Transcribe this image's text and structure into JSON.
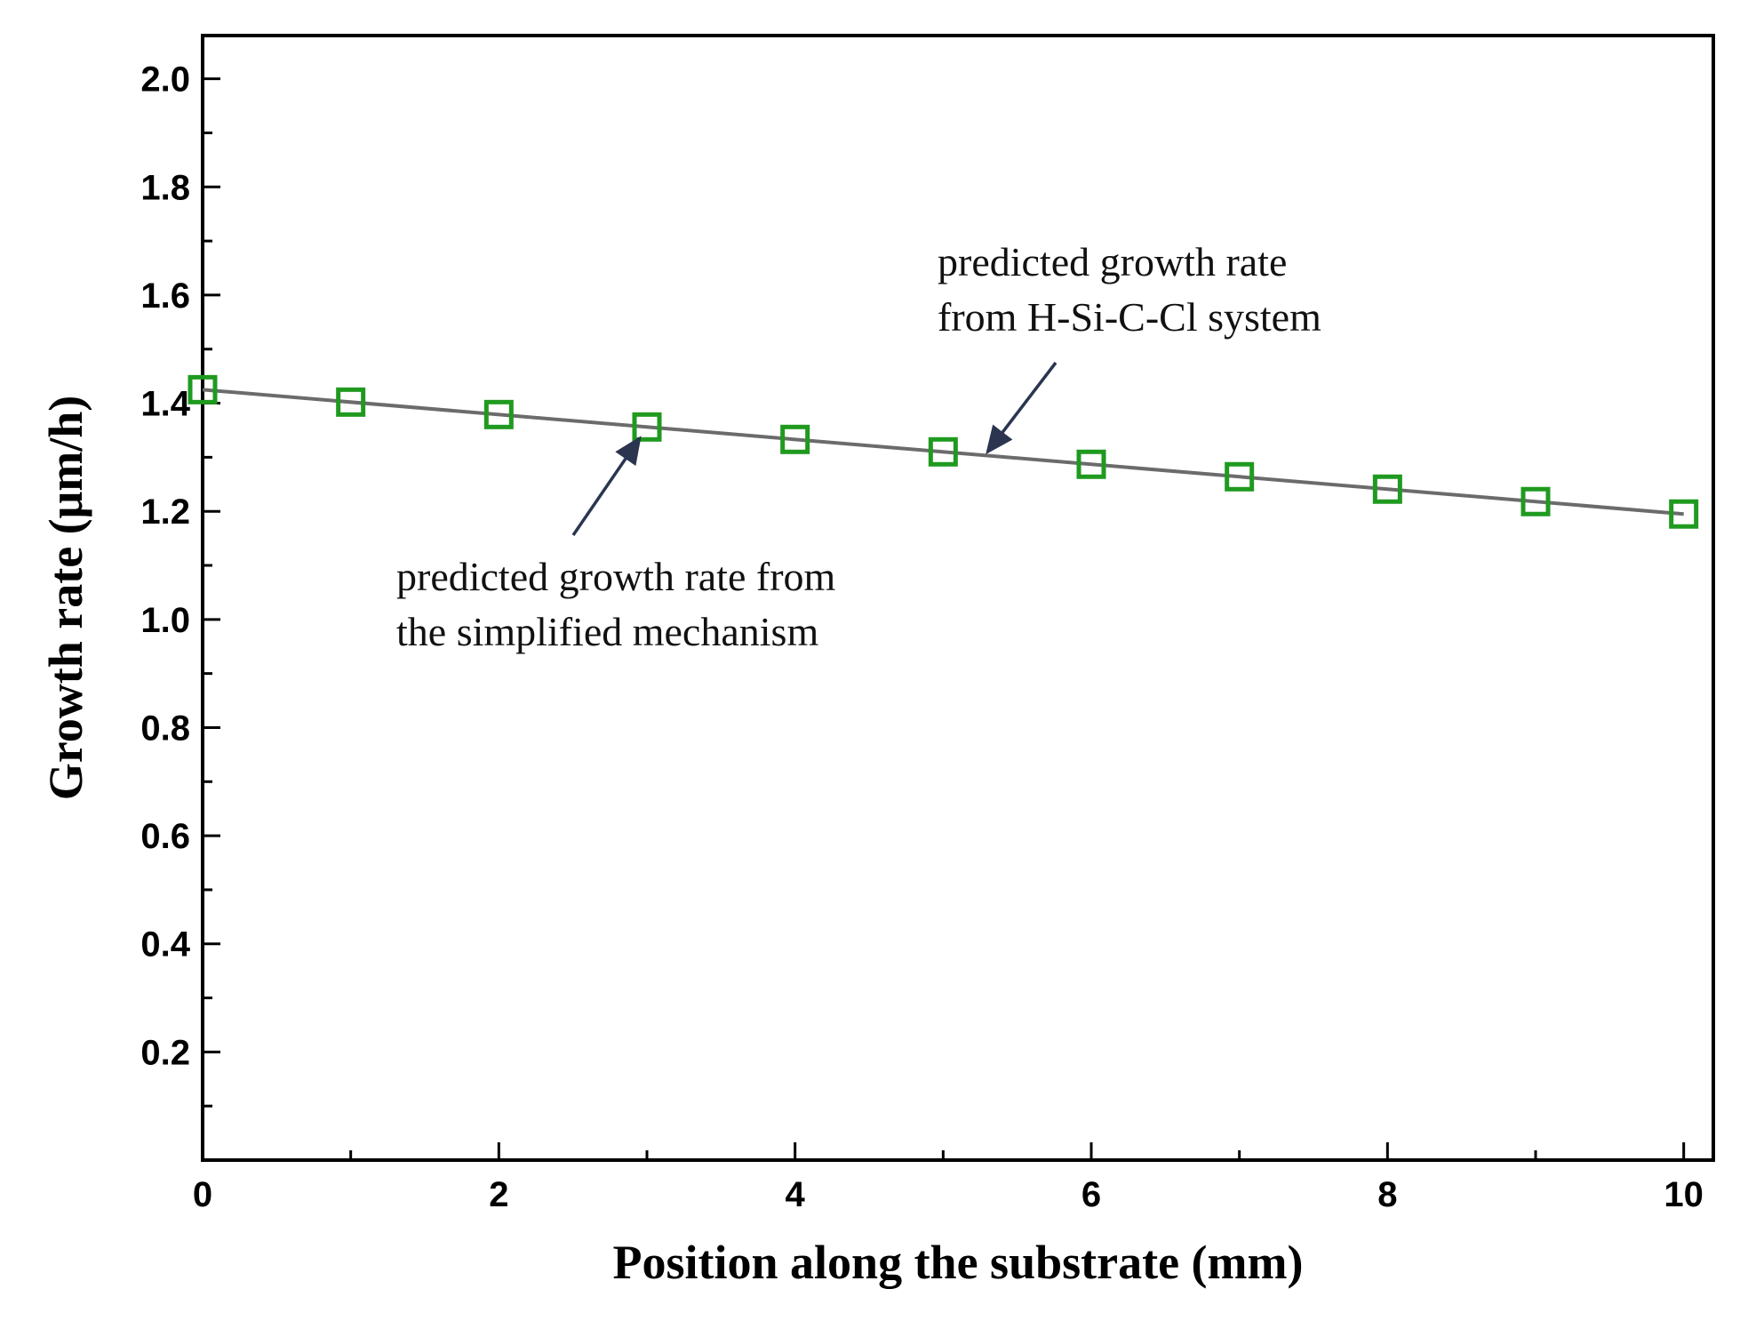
{
  "chart_data": {
    "type": "line",
    "xlabel": "Position along the substrate (mm)",
    "ylabel": "Growth rate (μm/h)",
    "xlim": [
      0,
      10.2
    ],
    "ylim": [
      0,
      2.08
    ],
    "xticks": [
      0,
      2,
      4,
      6,
      8,
      10
    ],
    "xticks_minor": [
      1,
      3,
      5,
      7,
      9
    ],
    "yticks": [
      0.2,
      0.4,
      0.6,
      0.8,
      1.0,
      1.2,
      1.4,
      1.6,
      1.8,
      2.0
    ],
    "yticks_minor": [
      0.1,
      0.3,
      0.5,
      0.7,
      0.9,
      1.1,
      1.3,
      1.5,
      1.7,
      1.9
    ],
    "grid": false,
    "series": [
      {
        "role": "line",
        "color": "#6b6b6b",
        "x": [
          0,
          10
        ],
        "y": [
          1.425,
          1.195
        ]
      },
      {
        "role": "markers",
        "marker": "open-square",
        "color": "#1f9a1f",
        "x": [
          0,
          1,
          2,
          3,
          4,
          5,
          6,
          7,
          8,
          9,
          10
        ],
        "y": [
          1.425,
          1.402,
          1.379,
          1.356,
          1.333,
          1.31,
          1.287,
          1.264,
          1.241,
          1.218,
          1.195
        ]
      }
    ],
    "annotations": [
      {
        "lines": [
          "predicted growth rate",
          "from H-Si-C-Cl system"
        ],
        "arrow_to": [
          5.3,
          1.31
        ]
      },
      {
        "lines": [
          "predicted growth rate from",
          "the simplified mechanism"
        ],
        "arrow_to": [
          2.95,
          1.335
        ]
      }
    ]
  }
}
